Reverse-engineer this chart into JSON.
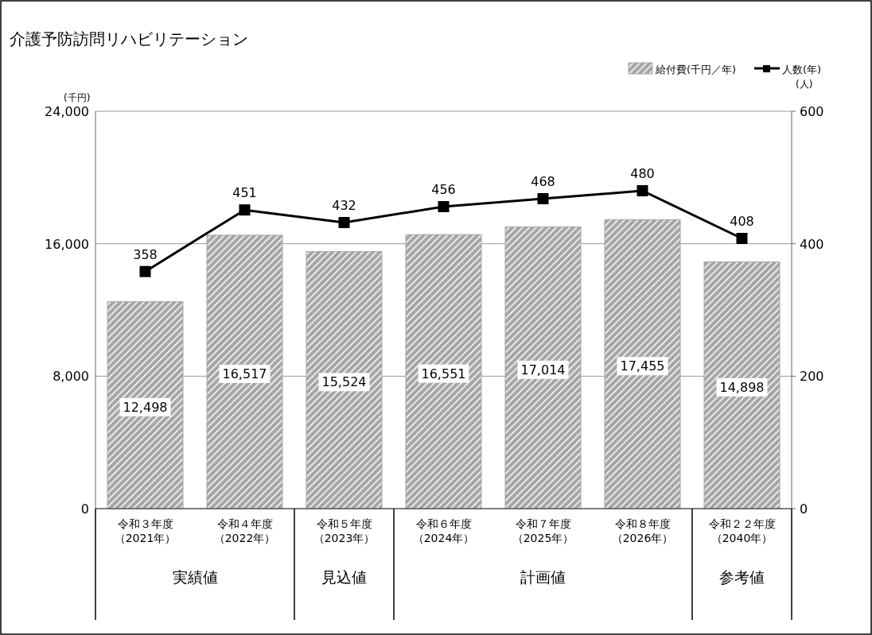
{
  "chart_data": {
    "type": "bar",
    "title": "介護予防訪問リハビリテーション",
    "ylabel": "(千円)",
    "y2label": "(人)",
    "categories": [
      "令和３年度（2021年）",
      "令和４年度（2022年）",
      "令和５年度（2023年）",
      "令和６年度（2024年）",
      "令和７年度（2025年）",
      "令和８年度（2026年）",
      "令和２２年度（2040年）"
    ],
    "series": [
      {
        "name": "給付費(千円／年)",
        "color": "#a6a6a6",
        "values": [
          12498,
          16517,
          15524,
          16551,
          17014,
          17455,
          14898
        ],
        "value_labels": [
          "12,498",
          "16,517",
          "15,524",
          "16,551",
          "17,014",
          "17,455",
          "14,898"
        ]
      },
      {
        "name": "人数(年)",
        "type": "line",
        "axis": "y2",
        "color": "#000000",
        "marker": "square",
        "values": [
          358,
          451,
          432,
          456,
          468,
          480,
          408
        ],
        "value_labels": [
          "358",
          "451",
          "432",
          "456",
          "468",
          "480",
          "408"
        ]
      }
    ],
    "ylim": [
      0,
      24000
    ],
    "yticks": [
      {
        "value": 0,
        "label": "0"
      },
      {
        "value": 8000,
        "label": "8,000"
      },
      {
        "value": 16000,
        "label": "16,000"
      },
      {
        "value": 24000,
        "label": "24,000"
      }
    ],
    "y2lim": [
      0,
      600
    ],
    "y2ticks": [
      0,
      200,
      400,
      600
    ],
    "grid": "y",
    "legend": "top right",
    "annotations": [
      "実績値",
      "見込値",
      "計画値",
      "参考値"
    ]
  }
}
